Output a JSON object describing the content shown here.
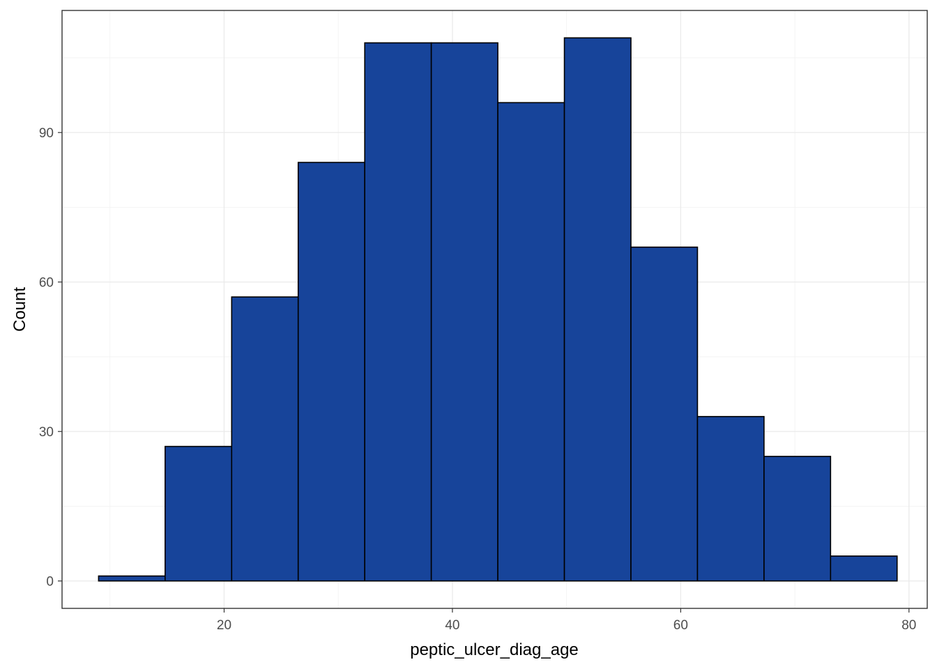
{
  "chart_data": {
    "type": "bar",
    "subtype": "histogram",
    "title": "",
    "xlabel": "peptic_ulcer_diag_age",
    "ylabel": "Count",
    "xlim": [
      5.8,
      81.6
    ],
    "ylim": [
      -5.5,
      114.5
    ],
    "x_ticks": [
      20,
      40,
      60,
      80
    ],
    "y_ticks": [
      0,
      30,
      60,
      90
    ],
    "bin_width": 5.83,
    "bins": [
      {
        "x0": 9.0,
        "x1": 14.83,
        "count": 1
      },
      {
        "x0": 14.83,
        "x1": 20.66,
        "count": 27
      },
      {
        "x0": 20.66,
        "x1": 26.49,
        "count": 57
      },
      {
        "x0": 26.49,
        "x1": 32.32,
        "count": 84
      },
      {
        "x0": 32.32,
        "x1": 38.15,
        "count": 108
      },
      {
        "x0": 38.15,
        "x1": 43.98,
        "count": 108
      },
      {
        "x0": 43.98,
        "x1": 49.81,
        "count": 96
      },
      {
        "x0": 49.81,
        "x1": 55.64,
        "count": 109
      },
      {
        "x0": 55.64,
        "x1": 61.47,
        "count": 67
      },
      {
        "x0": 61.47,
        "x1": 67.3,
        "count": 33
      },
      {
        "x0": 67.3,
        "x1": 73.13,
        "count": 25
      },
      {
        "x0": 73.13,
        "x1": 78.96,
        "count": 5
      }
    ],
    "bar_fill": "#17449a",
    "bar_outline": "#000000",
    "grid": true,
    "theme": "bw"
  }
}
